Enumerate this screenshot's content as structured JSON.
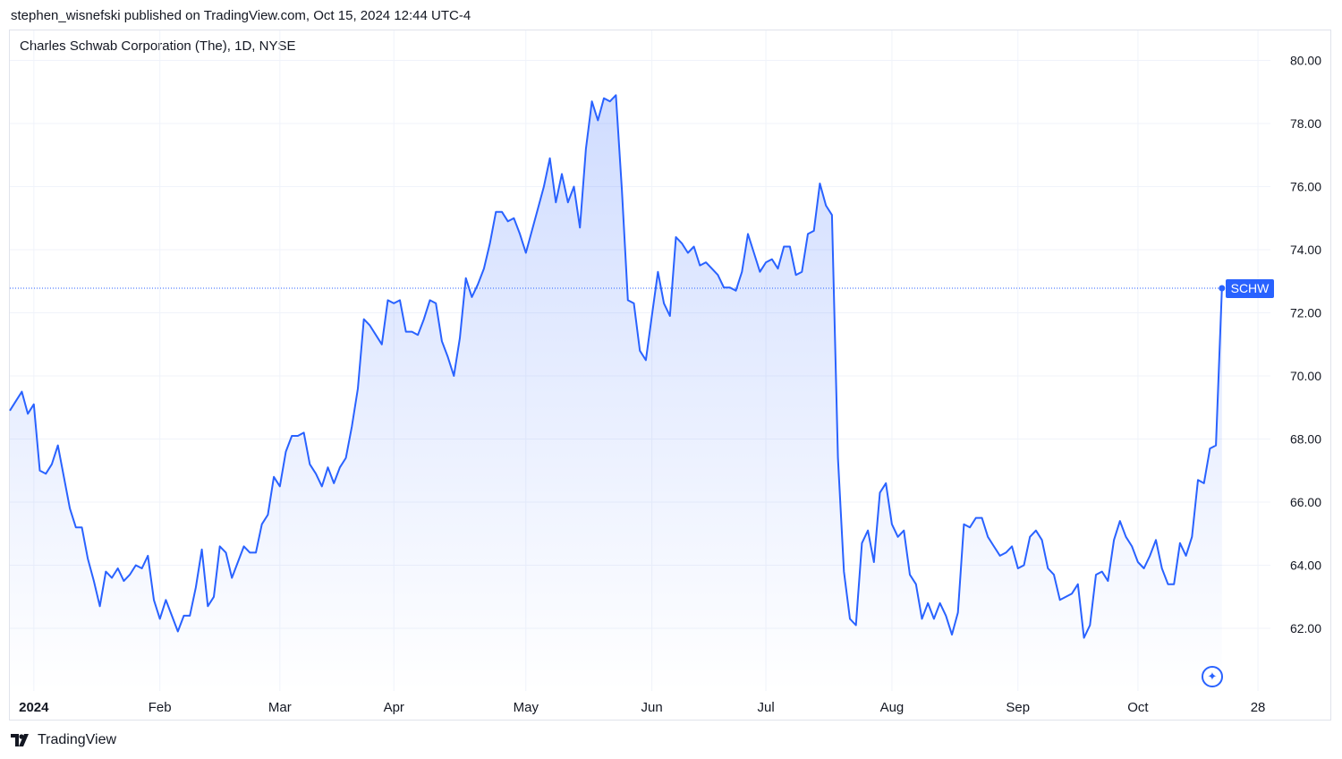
{
  "header": {
    "published_text": "stephen_wisnefski published on TradingView.com, Oct 15, 2024 12:44 UTC-4"
  },
  "chart": {
    "title": "Charles Schwab Corporation (The), 1D, NYSE",
    "symbol_tag": "SCHW"
  },
  "footer": {
    "brand": "TradingView"
  },
  "colors": {
    "line": "#2962ff",
    "grid": "#f0f3fa",
    "axis_text": "#131722"
  },
  "chart_data": {
    "type": "area",
    "title": "Charles Schwab Corporation (The), 1D, NYSE",
    "ylim": [
      59.5,
      80.5
    ],
    "y_ticks": [
      "80.00",
      "78.00",
      "76.00",
      "74.00",
      "72.00",
      "70.00",
      "68.00",
      "66.00",
      "64.00",
      "62.00"
    ],
    "y_tick_values": [
      80,
      78,
      76,
      74,
      72,
      70,
      68,
      66,
      64,
      62
    ],
    "x_ticks": [
      {
        "label": "2024",
        "index": 4,
        "bold": true
      },
      {
        "label": "Feb",
        "index": 25
      },
      {
        "label": "Mar",
        "index": 45
      },
      {
        "label": "Apr",
        "index": 64
      },
      {
        "label": "May",
        "index": 86
      },
      {
        "label": "Jun",
        "index": 107
      },
      {
        "label": "Jul",
        "index": 126
      },
      {
        "label": "Aug",
        "index": 147
      },
      {
        "label": "Sep",
        "index": 168
      },
      {
        "label": "Oct",
        "index": 188
      },
      {
        "label": "28",
        "index": 208
      }
    ],
    "last_value": 72.78,
    "last_label": "SCHW",
    "grid": true,
    "series": [
      {
        "values": [
          68.9,
          69.2,
          69.5,
          68.8,
          69.1,
          67.0,
          66.9,
          67.2,
          67.8,
          66.8,
          65.8,
          65.2,
          65.2,
          64.2,
          63.5,
          62.7,
          63.8,
          63.6,
          63.9,
          63.5,
          63.7,
          64.0,
          63.9,
          64.3,
          62.9,
          62.3,
          62.9,
          62.4,
          61.9,
          62.4,
          62.4,
          63.3,
          64.5,
          62.7,
          63.0,
          64.6,
          64.4,
          63.6,
          64.1,
          64.6,
          64.4,
          64.4,
          65.3,
          65.6,
          66.8,
          66.5,
          67.6,
          68.1,
          68.1,
          68.2,
          67.2,
          66.9,
          66.5,
          67.1,
          66.6,
          67.1,
          67.4,
          68.4,
          69.6,
          71.8,
          71.6,
          71.3,
          71.0,
          72.4,
          72.3,
          72.4,
          71.4,
          71.4,
          71.3,
          71.8,
          72.4,
          72.3,
          71.1,
          70.6,
          70.0,
          71.2,
          73.1,
          72.5,
          72.9,
          73.4,
          74.2,
          75.2,
          75.2,
          74.9,
          75.0,
          74.5,
          73.9,
          74.6,
          75.3,
          76.0,
          76.9,
          75.5,
          76.4,
          75.5,
          76.0,
          74.7,
          77.2,
          78.7,
          78.1,
          78.8,
          78.7,
          78.9,
          75.9,
          72.4,
          72.3,
          70.8,
          70.5,
          71.9,
          73.3,
          72.3,
          71.9,
          74.4,
          74.2,
          73.9,
          74.1,
          73.5,
          73.6,
          73.4,
          73.2,
          72.8,
          72.8,
          72.7,
          73.3,
          74.5,
          73.9,
          73.3,
          73.6,
          73.7,
          73.4,
          74.1,
          74.1,
          73.2,
          73.3,
          74.5,
          74.6,
          76.1,
          75.4,
          75.1,
          67.4,
          63.8,
          62.3,
          62.1,
          64.7,
          65.1,
          64.1,
          66.3,
          66.6,
          65.3,
          64.9,
          65.1,
          63.7,
          63.4,
          62.3,
          62.8,
          62.3,
          62.8,
          62.4,
          61.8,
          62.5,
          65.3,
          65.2,
          65.5,
          65.5,
          64.9,
          64.6,
          64.3,
          64.4,
          64.6,
          63.9,
          64.0,
          64.9,
          65.1,
          64.8,
          63.9,
          63.7,
          62.9,
          63.0,
          63.1,
          63.4,
          61.7,
          62.1,
          63.7,
          63.8,
          63.5,
          64.8,
          65.4,
          64.9,
          64.6,
          64.1,
          63.9,
          64.3,
          64.8,
          63.9,
          63.4,
          63.4,
          64.7,
          64.3,
          64.9,
          66.7,
          66.6,
          67.7,
          67.8,
          72.78
        ]
      }
    ]
  }
}
